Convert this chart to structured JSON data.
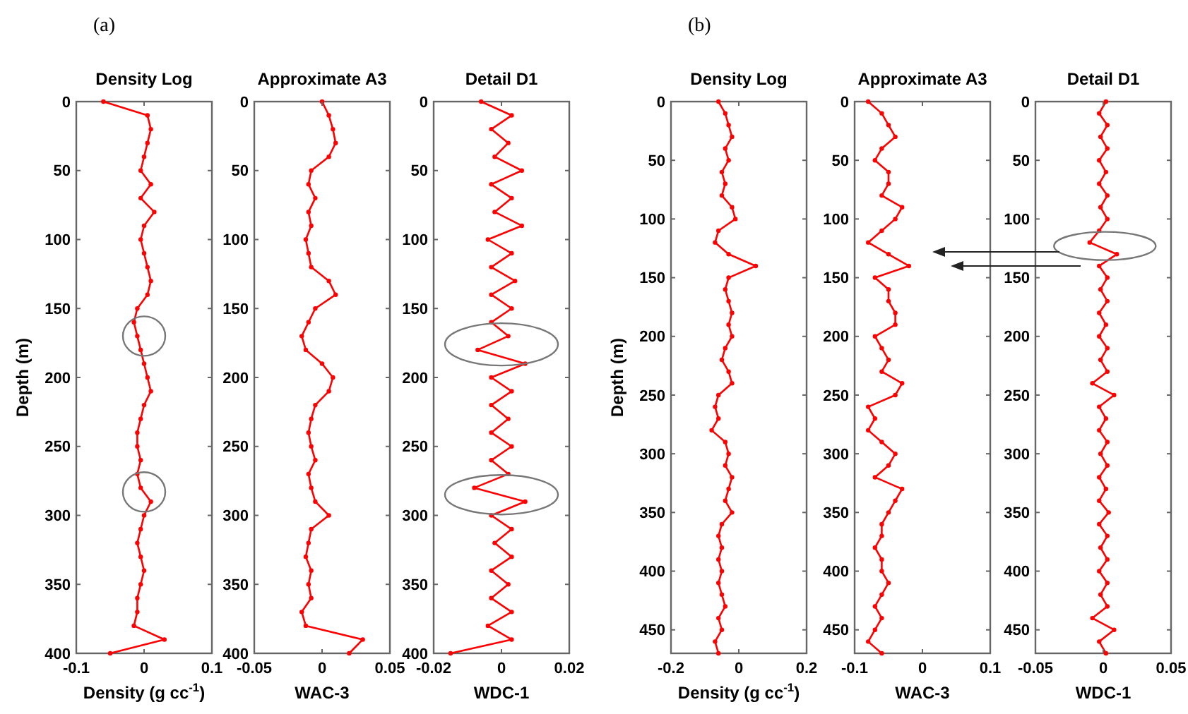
{
  "chart_data": [
    {
      "type": "line",
      "title": "Density Log",
      "xlabel": "Density (g cc$^{-1}$)",
      "ylabel": "Depth (m)",
      "annotations": [
        "(a)"
      ],
      "xlim": [
        -0.1,
        0.1
      ],
      "xticks": [
        -0.1,
        0,
        0.1
      ],
      "ylim": [
        400,
        0
      ],
      "yticks": [
        0,
        50,
        100,
        150,
        200,
        250,
        300,
        350,
        400
      ],
      "marker": "circle",
      "line_style": "solid",
      "grid": false,
      "series": [
        {
          "color": "#ff0000",
          "x": [
            -0.06,
            0.005,
            0.01,
            0.005,
            0.0,
            -0.005,
            0.01,
            -0.005,
            0.015,
            0.0,
            -0.005,
            0.0,
            0.005,
            0.01,
            0.005,
            -0.01,
            -0.015,
            -0.01,
            -0.005,
            0.0,
            0.005,
            0.01,
            0.0,
            -0.005,
            -0.01,
            -0.01,
            -0.005,
            -0.01,
            -0.005,
            0.01,
            0.0,
            -0.005,
            -0.01,
            -0.005,
            0.0,
            -0.005,
            -0.01,
            -0.01,
            -0.015,
            0.03,
            -0.05
          ],
          "values": [
            0,
            10,
            20,
            30,
            40,
            50,
            60,
            70,
            80,
            90,
            100,
            110,
            120,
            130,
            140,
            150,
            160,
            170,
            180,
            190,
            200,
            210,
            220,
            230,
            240,
            250,
            260,
            270,
            280,
            290,
            300,
            310,
            320,
            330,
            340,
            350,
            360,
            370,
            380,
            390,
            400
          ]
        }
      ]
    },
    {
      "type": "line",
      "title": "Approximate A3",
      "xlabel": "WAC-3",
      "xlim": [
        -0.05,
        0.05
      ],
      "xticks": [
        -0.05,
        0,
        0.05
      ],
      "ylim": [
        400,
        0
      ],
      "yticks": [
        0,
        50,
        100,
        150,
        200,
        250,
        300,
        350,
        400
      ],
      "marker": "circle",
      "line_style": "solid",
      "grid": false,
      "series": [
        {
          "color": "#ff0000",
          "x": [
            0.0,
            0.005,
            0.008,
            0.01,
            0.005,
            -0.008,
            -0.01,
            -0.005,
            -0.01,
            -0.008,
            -0.012,
            -0.01,
            -0.008,
            0.005,
            0.01,
            -0.005,
            -0.01,
            -0.015,
            -0.012,
            0.0,
            0.008,
            0.005,
            -0.005,
            -0.008,
            -0.01,
            -0.008,
            -0.005,
            -0.01,
            -0.008,
            -0.005,
            0.005,
            -0.008,
            -0.01,
            -0.012,
            -0.008,
            -0.01,
            -0.008,
            -0.015,
            -0.012,
            0.03,
            0.02
          ],
          "values": [
            0,
            10,
            20,
            30,
            40,
            50,
            60,
            70,
            80,
            90,
            100,
            110,
            120,
            130,
            140,
            150,
            160,
            170,
            180,
            190,
            200,
            210,
            220,
            230,
            240,
            250,
            260,
            270,
            280,
            290,
            300,
            310,
            320,
            330,
            340,
            350,
            360,
            370,
            380,
            390,
            400
          ]
        }
      ]
    },
    {
      "type": "line",
      "title": "Detail D1",
      "xlabel": "WDC-1",
      "xlim": [
        -0.02,
        0.02
      ],
      "xticks": [
        -0.02,
        0,
        0.02
      ],
      "ylim": [
        400,
        0
      ],
      "yticks": [
        0,
        50,
        100,
        150,
        200,
        250,
        300,
        350,
        400
      ],
      "marker": "circle",
      "line_style": "solid",
      "grid": false,
      "series": [
        {
          "color": "#ff0000",
          "x": [
            -0.006,
            0.003,
            -0.003,
            0.002,
            -0.002,
            0.006,
            -0.003,
            0.003,
            -0.002,
            0.006,
            -0.004,
            0.003,
            -0.003,
            0.004,
            -0.003,
            0.003,
            -0.003,
            0.002,
            -0.007,
            0.007,
            -0.003,
            0.003,
            -0.003,
            0.002,
            -0.003,
            0.003,
            -0.003,
            0.002,
            -0.008,
            0.007,
            -0.003,
            0.003,
            -0.002,
            0.003,
            -0.003,
            0.002,
            -0.003,
            0.003,
            -0.004,
            0.003,
            -0.015
          ],
          "values": [
            0,
            10,
            20,
            30,
            40,
            50,
            60,
            70,
            80,
            90,
            100,
            110,
            120,
            130,
            140,
            150,
            160,
            170,
            180,
            190,
            200,
            210,
            220,
            230,
            240,
            250,
            260,
            270,
            280,
            290,
            300,
            310,
            320,
            330,
            340,
            350,
            360,
            370,
            380,
            390,
            400
          ]
        }
      ]
    },
    {
      "type": "line",
      "title": "Density Log",
      "xlabel": "Density (g cc$^{-1}$)",
      "ylabel": "Depth (m)",
      "annotations": [
        "(b)"
      ],
      "xlim": [
        -0.2,
        0.2
      ],
      "xticks": [
        -0.2,
        0,
        0.2
      ],
      "ylim": [
        470,
        0
      ],
      "yticks": [
        0,
        50,
        100,
        150,
        200,
        250,
        300,
        350,
        400,
        450
      ],
      "marker": "circle",
      "line_style": "solid",
      "grid": false,
      "series": [
        {
          "color": "#ff0000",
          "x": [
            -0.06,
            -0.04,
            -0.03,
            -0.02,
            -0.04,
            -0.03,
            -0.05,
            -0.04,
            -0.05,
            -0.02,
            -0.01,
            -0.06,
            -0.07,
            -0.03,
            0.05,
            -0.03,
            -0.04,
            -0.03,
            -0.02,
            -0.03,
            -0.02,
            -0.04,
            -0.05,
            -0.03,
            -0.02,
            -0.06,
            -0.07,
            -0.06,
            -0.08,
            -0.04,
            -0.03,
            -0.04,
            -0.02,
            -0.03,
            -0.04,
            -0.02,
            -0.05,
            -0.06,
            -0.05,
            -0.06,
            -0.05,
            -0.06,
            -0.05,
            -0.04,
            -0.06,
            -0.05,
            -0.07,
            -0.06
          ],
          "values": [
            0,
            10,
            20,
            30,
            40,
            50,
            60,
            70,
            80,
            90,
            100,
            110,
            120,
            130,
            140,
            150,
            160,
            170,
            180,
            190,
            200,
            210,
            220,
            230,
            240,
            250,
            260,
            270,
            280,
            290,
            300,
            310,
            320,
            330,
            340,
            350,
            360,
            370,
            380,
            390,
            400,
            410,
            420,
            430,
            440,
            450,
            460,
            470
          ]
        }
      ]
    },
    {
      "type": "line",
      "title": "Approximate A3",
      "xlabel": "WAC-3",
      "xlim": [
        -0.1,
        0.1
      ],
      "xticks": [
        -0.1,
        0,
        0.1
      ],
      "ylim": [
        470,
        0
      ],
      "yticks": [
        0,
        50,
        100,
        150,
        200,
        250,
        300,
        350,
        400,
        450
      ],
      "marker": "circle",
      "line_style": "solid",
      "grid": false,
      "series": [
        {
          "color": "#ff0000",
          "x": [
            -0.08,
            -0.06,
            -0.05,
            -0.04,
            -0.06,
            -0.07,
            -0.05,
            -0.05,
            -0.06,
            -0.03,
            -0.04,
            -0.06,
            -0.08,
            -0.05,
            -0.02,
            -0.07,
            -0.05,
            -0.05,
            -0.04,
            -0.04,
            -0.07,
            -0.06,
            -0.05,
            -0.06,
            -0.03,
            -0.04,
            -0.08,
            -0.07,
            -0.08,
            -0.06,
            -0.04,
            -0.05,
            -0.07,
            -0.03,
            -0.04,
            -0.05,
            -0.06,
            -0.06,
            -0.07,
            -0.06,
            -0.06,
            -0.05,
            -0.06,
            -0.07,
            -0.06,
            -0.07,
            -0.08,
            -0.06
          ],
          "values": [
            0,
            10,
            20,
            30,
            40,
            50,
            60,
            70,
            80,
            90,
            100,
            110,
            120,
            130,
            140,
            150,
            160,
            170,
            180,
            190,
            200,
            210,
            220,
            230,
            240,
            250,
            260,
            270,
            280,
            290,
            300,
            310,
            320,
            330,
            340,
            350,
            360,
            370,
            380,
            390,
            400,
            410,
            420,
            430,
            440,
            450,
            460,
            470
          ]
        }
      ]
    },
    {
      "type": "line",
      "title": "Detail D1",
      "xlabel": "WDC-1",
      "xlim": [
        -0.05,
        0.05
      ],
      "xticks": [
        -0.05,
        0,
        0.05
      ],
      "ylim": [
        470,
        0
      ],
      "yticks": [
        0,
        50,
        100,
        150,
        200,
        250,
        300,
        350,
        400,
        450
      ],
      "marker": "circle",
      "line_style": "solid",
      "grid": false,
      "series": [
        {
          "color": "#ff0000",
          "x": [
            0.002,
            -0.003,
            0.003,
            -0.002,
            0.003,
            -0.003,
            0.002,
            -0.003,
            0.003,
            -0.002,
            0.003,
            -0.003,
            -0.01,
            0.01,
            -0.003,
            0.003,
            -0.002,
            0.003,
            -0.003,
            0.002,
            -0.003,
            0.003,
            -0.002,
            0.003,
            -0.008,
            0.008,
            -0.003,
            0.002,
            -0.003,
            0.003,
            -0.002,
            0.003,
            -0.003,
            0.002,
            -0.003,
            0.004,
            -0.003,
            0.003,
            -0.002,
            0.003,
            -0.003,
            0.003,
            -0.002,
            0.003,
            -0.008,
            0.008,
            -0.003,
            0.002
          ],
          "values": [
            0,
            10,
            20,
            30,
            40,
            50,
            60,
            70,
            80,
            90,
            100,
            110,
            120,
            130,
            140,
            150,
            160,
            170,
            180,
            190,
            200,
            210,
            220,
            230,
            240,
            250,
            260,
            270,
            280,
            290,
            300,
            310,
            320,
            330,
            340,
            350,
            360,
            370,
            380,
            390,
            400,
            410,
            420,
            430,
            440,
            450,
            460,
            470
          ]
        }
      ]
    }
  ]
}
